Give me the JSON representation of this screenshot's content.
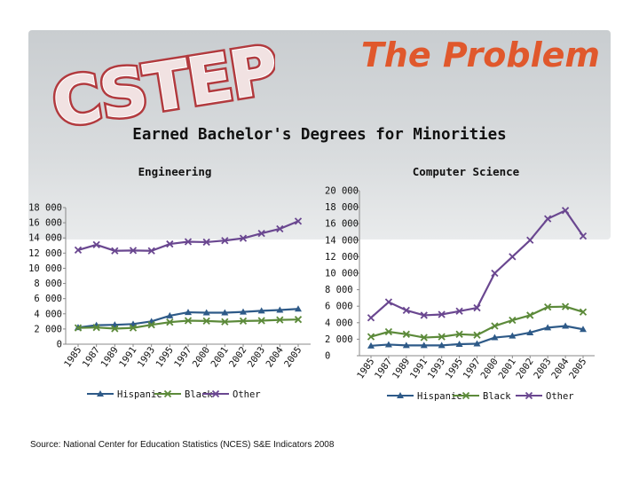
{
  "slide": {
    "title": "The Problem",
    "logo_text": "CSTEP",
    "main_title": "Earned Bachelor's Degrees for Minorities",
    "source": "Source: National Center for Education Statistics (NCES) S&E Indicators 2008",
    "colors": {
      "title": "#e0582c",
      "logo": "#b23a3e",
      "panel": "#d3d6d8"
    }
  },
  "chart_data": [
    {
      "type": "line",
      "title": "Engineering",
      "x": [
        "1985",
        "1987",
        "1989",
        "1991",
        "1993",
        "1995",
        "1997",
        "2000",
        "2001",
        "2002",
        "2003",
        "2004",
        "2005"
      ],
      "ylim": [
        0,
        18000
      ],
      "yticks": [
        "0",
        "2 000",
        "4 000",
        "6 000",
        "8 000",
        "10 000",
        "12 000",
        "14 000",
        "16 000",
        "18 000"
      ],
      "grid": false,
      "legend": "bottom",
      "series": [
        {
          "name": "Hispanic",
          "color": "#2e5a88",
          "marker": "triangle",
          "values": [
            2200,
            2500,
            2550,
            2650,
            3000,
            3750,
            4200,
            4150,
            4150,
            4250,
            4400,
            4500,
            4650
          ]
        },
        {
          "name": "Black",
          "color": "#5c8a3a",
          "marker": "x",
          "values": [
            2150,
            2200,
            2050,
            2150,
            2550,
            2900,
            3100,
            3050,
            2950,
            3050,
            3100,
            3200,
            3250
          ]
        },
        {
          "name": "Other",
          "color": "#6a4790",
          "marker": "x",
          "values": [
            12400,
            13100,
            12300,
            12350,
            12300,
            13200,
            13500,
            13450,
            13650,
            13950,
            14600,
            15200,
            16200
          ]
        }
      ]
    },
    {
      "type": "line",
      "title": "Computer Science",
      "x": [
        "1985",
        "1987",
        "1989",
        "1991",
        "1993",
        "1995",
        "1997",
        "2000",
        "2001",
        "2002",
        "2003",
        "2004",
        "2005"
      ],
      "ylim": [
        0,
        20000
      ],
      "yticks": [
        "0",
        "2 000",
        "4 000",
        "6 000",
        "8 000",
        "10 000",
        "12 000",
        "14 000",
        "16 000",
        "18 000",
        "20 000"
      ],
      "grid": false,
      "legend": "bottom",
      "series": [
        {
          "name": "Hispanic",
          "color": "#2e5a88",
          "marker": "triangle",
          "values": [
            1200,
            1350,
            1250,
            1250,
            1250,
            1400,
            1450,
            2200,
            2400,
            2800,
            3400,
            3600,
            3200
          ]
        },
        {
          "name": "Black",
          "color": "#5c8a3a",
          "marker": "x",
          "values": [
            2300,
            2900,
            2600,
            2200,
            2300,
            2600,
            2500,
            3600,
            4300,
            4900,
            5900,
            5950,
            5300
          ]
        },
        {
          "name": "Other",
          "color": "#6a4790",
          "marker": "x",
          "values": [
            4600,
            6500,
            5500,
            4900,
            5000,
            5400,
            5800,
            10000,
            12000,
            14000,
            16600,
            17600,
            14500
          ]
        }
      ]
    }
  ]
}
